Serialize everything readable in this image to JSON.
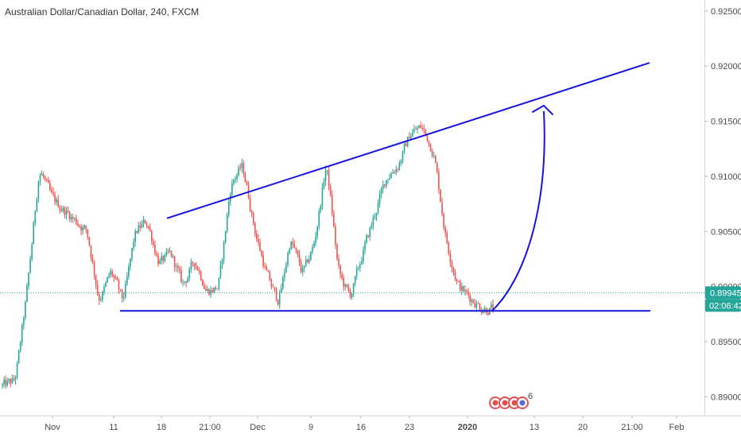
{
  "chart_data": {
    "type": "candlestick",
    "title": "Australian Dollar/Canadian Dollar, 240, FXCM",
    "x_ticks": [
      "Nov",
      "11",
      "18",
      "21:00",
      "Dec",
      "9",
      "16",
      "23",
      "2020",
      "13",
      "20",
      "21:00",
      "Feb"
    ],
    "y_ticks": [
      "0.92500",
      "0.92000",
      "0.91500",
      "0.91000",
      "0.90500",
      "0.90000",
      "0.89500",
      "0.89000"
    ],
    "ylim": [
      0.8883,
      0.926
    ],
    "grid": false,
    "price_tag": {
      "value": "0.89945",
      "countdown": "02:06:42",
      "color": "#26a69a"
    },
    "countdown_color": "#26a69a",
    "up_color": "#26a69a",
    "down_color": "#ef5350",
    "line_color": "#1515e0",
    "candle_count": 300,
    "price_path": [
      [
        0.891,
        0.8905
      ],
      [
        0.8915,
        0.8925
      ],
      [
        0.9,
        0.9005
      ],
      [
        0.911,
        0.9115
      ],
      [
        0.908,
        0.9085
      ],
      [
        0.907,
        0.9075
      ],
      [
        0.906,
        0.9065
      ],
      [
        0.905,
        0.9055
      ],
      [
        0.8985,
        0.898
      ],
      [
        0.9015,
        0.901
      ],
      [
        0.8985,
        0.898
      ],
      [
        0.905,
        0.9055
      ],
      [
        0.906,
        0.9065
      ],
      [
        0.902,
        0.9025
      ],
      [
        0.903,
        0.9035
      ],
      [
        0.9,
        0.8995
      ],
      [
        0.9025,
        0.902
      ],
      [
        0.8995,
        0.899
      ],
      [
        0.9,
        0.9002
      ],
      [
        0.9095,
        0.91
      ],
      [
        0.911,
        0.9115
      ],
      [
        0.905,
        0.9055
      ],
      [
        0.901,
        0.9005
      ],
      [
        0.8985,
        0.898
      ],
      [
        0.9045,
        0.905
      ],
      [
        0.901,
        0.9005
      ],
      [
        0.904,
        0.9045
      ],
      [
        0.9115,
        0.912
      ],
      [
        0.901,
        0.9005
      ],
      [
        0.899,
        0.8985
      ],
      [
        0.903,
        0.9035
      ],
      [
        0.9065,
        0.906
      ],
      [
        0.91,
        0.9105
      ],
      [
        0.911,
        0.9112
      ],
      [
        0.914,
        0.9145
      ],
      [
        0.9145,
        0.915
      ],
      [
        0.912,
        0.9125
      ],
      [
        0.904,
        0.9045
      ],
      [
        0.9,
        0.8995
      ],
      [
        0.899,
        0.8985
      ],
      [
        0.898,
        0.8975
      ],
      [
        0.898,
        0.8975
      ]
    ],
    "trendlines": [
      {
        "label": "rising resistance",
        "points": [
          [
            0.9062,
            0.9062
          ],
          [
            0.9203,
            0.9203
          ]
        ]
      },
      {
        "label": "horizontal support",
        "points": [
          [
            0.8978,
            0.8978
          ],
          [
            0.8978,
            0.8978
          ]
        ]
      }
    ],
    "projection": {
      "from": 0.8978,
      "to": 0.9175
    }
  },
  "events": {
    "count": "6"
  }
}
